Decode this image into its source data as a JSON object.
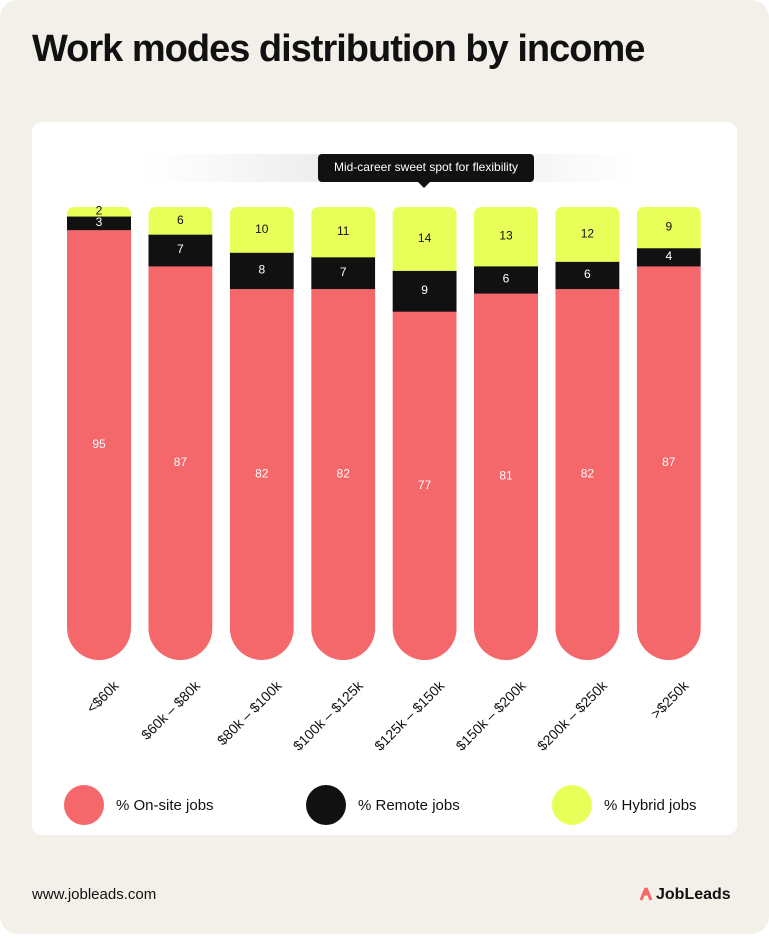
{
  "chart_data": {
    "type": "stacked_bar",
    "title": "Work modes distribution by income",
    "annotation": "Mid-career sweet spot for flexibility",
    "categories": [
      "<$60k",
      "$60k – $80k",
      "$80k – $100k",
      "$100k – $125k",
      "$125k – $150k",
      "$150k – $200k",
      "$200k – $250k",
      ">$250k"
    ],
    "series": [
      {
        "name": "% On-site jobs",
        "color": "#f4676a",
        "values": [
          95,
          87,
          82,
          82,
          77,
          81,
          82,
          87
        ]
      },
      {
        "name": "% Remote jobs",
        "color": "#111111",
        "values": [
          3,
          7,
          8,
          7,
          9,
          6,
          6,
          4
        ]
      },
      {
        "name": "% Hybrid jobs",
        "color": "#e8ff5a",
        "values": [
          2,
          6,
          10,
          11,
          14,
          13,
          12,
          9
        ]
      }
    ]
  },
  "footer": {
    "url": "www.jobleads.com",
    "brand": "JobLeads"
  }
}
